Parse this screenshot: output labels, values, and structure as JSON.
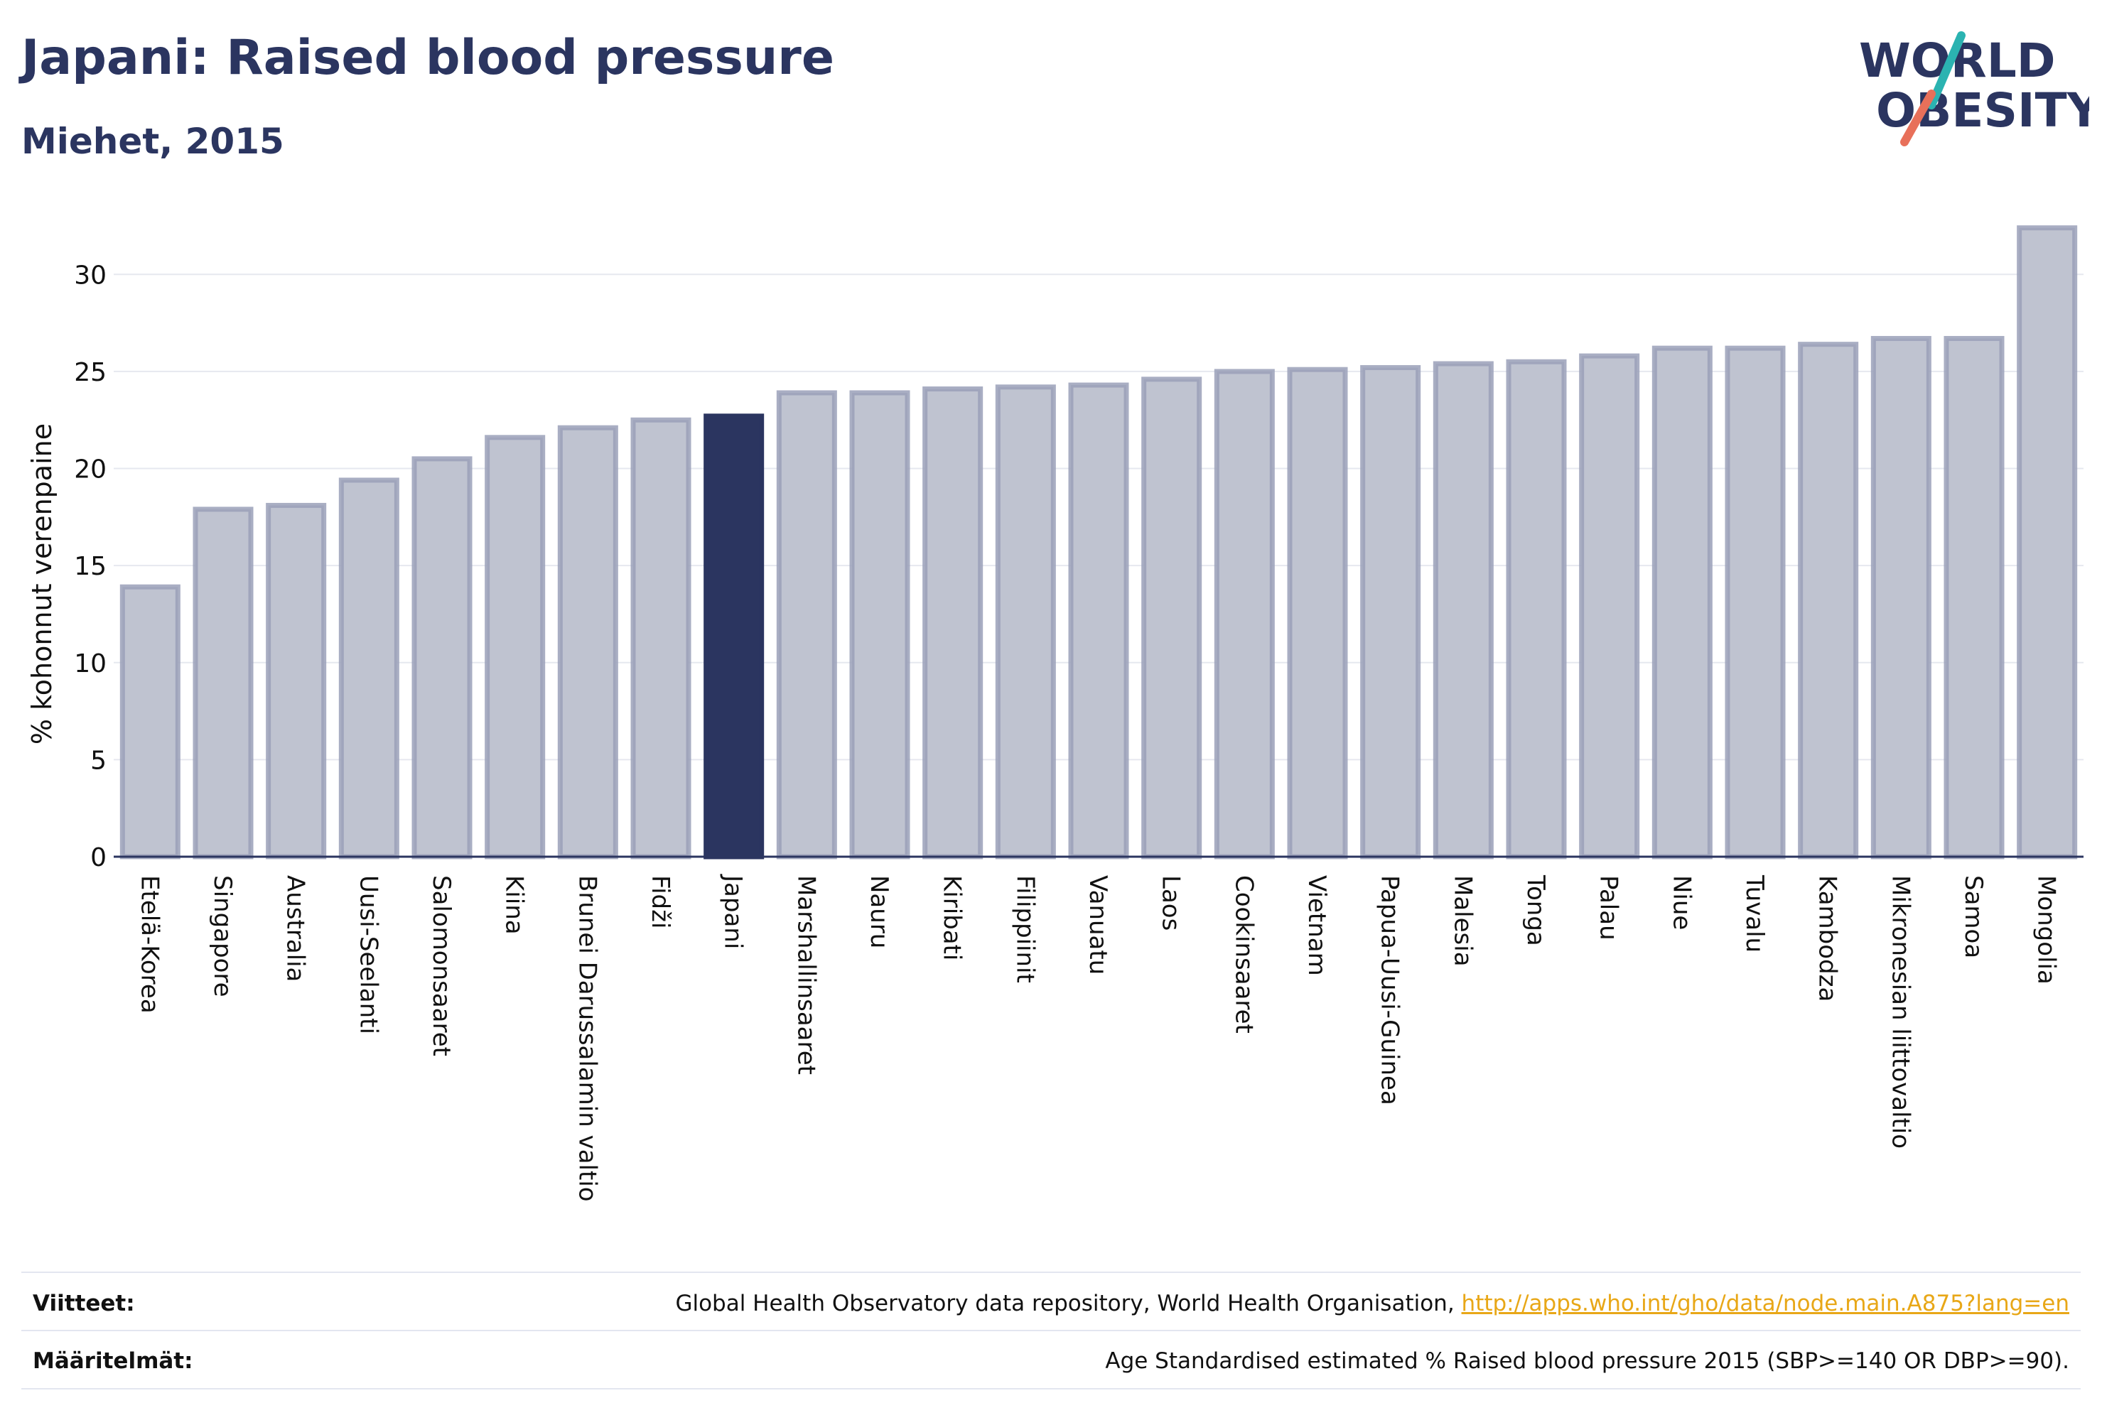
{
  "header": {
    "title": "Japani: Raised blood pressure",
    "subtitle": "Miehet, 2015"
  },
  "logo": {
    "line1": "WORLD",
    "line2": "OBESITY",
    "colors": {
      "text": "#2b3560",
      "slash_teal": "#2bb3b1",
      "slash_coral": "#e8705a"
    }
  },
  "chart_data": {
    "type": "bar",
    "title": "Japani: Raised blood pressure",
    "subtitle": "Miehet, 2015",
    "xlabel": "",
    "ylabel": "% kohonnut verenpaine",
    "ylim": [
      0,
      32.5
    ],
    "yticks": [
      0,
      5,
      10,
      15,
      20,
      25,
      30
    ],
    "grid": true,
    "highlight": "Japani",
    "colors": {
      "bar": "#bfc3d0",
      "bar_border": "#9aa0b8",
      "highlight": "#2b3560"
    },
    "categories": [
      "Etelä-Korea",
      "Singapore",
      "Australia",
      "Uusi-Seelanti",
      "Salomonsaaret",
      "Kiina",
      "Brunei Darussalamin valtio",
      "Fidži",
      "Japani",
      "Marshallinsaaret",
      "Nauru",
      "Kiribati",
      "Filippiinit",
      "Vanuatu",
      "Laos",
      "Cookinsaaret",
      "Vietnam",
      "Papua-Uusi-Guinea",
      "Malesia",
      "Tonga",
      "Palau",
      "Niue",
      "Tuvalu",
      "Kambodza",
      "Mikronesian liittovaltio",
      "Samoa",
      "Mongolia"
    ],
    "values": [
      13.9,
      17.9,
      18.1,
      19.4,
      20.5,
      21.6,
      22.1,
      22.5,
      22.7,
      23.9,
      23.9,
      24.1,
      24.2,
      24.3,
      24.6,
      25.0,
      25.1,
      25.2,
      25.4,
      25.5,
      25.8,
      26.2,
      26.2,
      26.4,
      26.7,
      26.7,
      32.4
    ]
  },
  "footer": {
    "sources_label": "Viitteet:",
    "sources_text": "Global Health Observatory data repository, World Health Organisation,",
    "sources_link": "http://apps.who.int/gho/data/node.main.A875?lang=en",
    "definitions_label": "Määritelmät:",
    "definitions_text": "Age Standardised estimated % Raised blood pressure 2015 (SBP>=140 OR DBP>=90)."
  }
}
